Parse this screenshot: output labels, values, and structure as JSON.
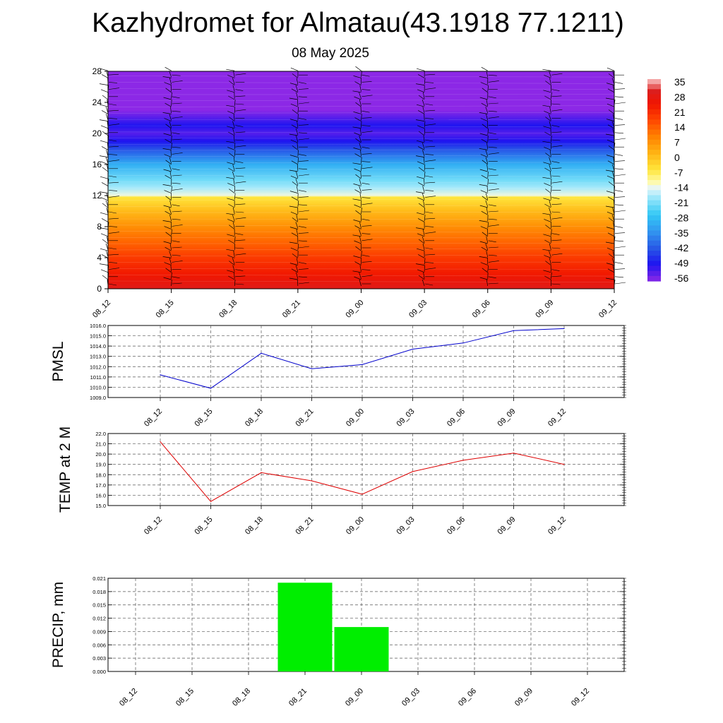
{
  "title": "Kazhydromet for Almatau(43.1918 77.1211)",
  "subtitle": "08 May 2025",
  "colors": {
    "pmsl_line": "#0000cc",
    "temp_line": "#dd0000",
    "precip_bar": "#00ee00"
  },
  "chart_data": [
    {
      "type": "heatmap",
      "title": "",
      "x_ticks": [
        "08_12",
        "08_15",
        "08_18",
        "08_21",
        "09_00",
        "09_03",
        "09_06",
        "09_09",
        "09_12"
      ],
      "y_ticks": [
        0,
        4,
        8,
        12,
        16,
        20,
        24,
        28
      ],
      "ylim": [
        0,
        28
      ],
      "colorbar": {
        "labels": [
          "35",
          "28",
          "21",
          "14",
          "7",
          "0",
          "-7",
          "-14",
          "-21",
          "-28",
          "-35",
          "-42",
          "-49",
          "-56"
        ],
        "range": [
          -60,
          38
        ]
      },
      "temperature_profile": {
        "levels": [
          0,
          1,
          2,
          4,
          6,
          8,
          10,
          11.8,
          12,
          13,
          14,
          16,
          18,
          19,
          20,
          21,
          22,
          23,
          28
        ],
        "values": [
          31,
          28,
          25,
          20,
          14,
          8,
          1,
          -6,
          -14,
          -19,
          -23,
          -32,
          -45,
          -52,
          -56,
          -52,
          -56,
          -60,
          -60
        ]
      },
      "wind_barbs": "present"
    },
    {
      "type": "line",
      "ylabel": "PMSL",
      "x": [
        "08_12",
        "08_15",
        "08_18",
        "08_21",
        "09_00",
        "09_03",
        "09_06",
        "09_09",
        "09_12"
      ],
      "values": [
        1011.2,
        1009.9,
        1013.3,
        1011.8,
        1012.2,
        1013.7,
        1014.3,
        1015.5,
        1015.7
      ],
      "ylim": [
        1009.0,
        1016.0
      ],
      "y_ticks": [
        "1009.0",
        "1010.0",
        "1011.0",
        "1012.0",
        "1013.0",
        "1014.0",
        "1015.0",
        "1016.0"
      ],
      "grid": true
    },
    {
      "type": "line",
      "ylabel": "TEMP at 2 M",
      "x": [
        "08_12",
        "08_15",
        "08_18",
        "08_21",
        "09_00",
        "09_03",
        "09_06",
        "09_09",
        "09_12"
      ],
      "values": [
        21.2,
        15.4,
        18.2,
        17.4,
        16.1,
        18.3,
        19.4,
        20.1,
        19.0
      ],
      "ylim": [
        15.0,
        22.0
      ],
      "y_ticks": [
        "15.0",
        "16.0",
        "17.0",
        "18.0",
        "19.0",
        "20.0",
        "21.0",
        "22.0"
      ],
      "grid": true
    },
    {
      "type": "bar",
      "ylabel": "PRECIP, mm",
      "categories": [
        "08_12",
        "08_15",
        "08_18",
        "08_21",
        "09_00",
        "09_03",
        "09_06",
        "09_09",
        "09_12"
      ],
      "values": [
        0,
        0,
        0,
        0.02,
        0.01,
        0,
        0,
        0,
        0
      ],
      "ylim": [
        0,
        0.021
      ],
      "y_ticks": [
        "0.000",
        "0.003",
        "0.006",
        "0.009",
        "0.012",
        "0.015",
        "0.018",
        "0.021"
      ],
      "grid": true
    }
  ]
}
